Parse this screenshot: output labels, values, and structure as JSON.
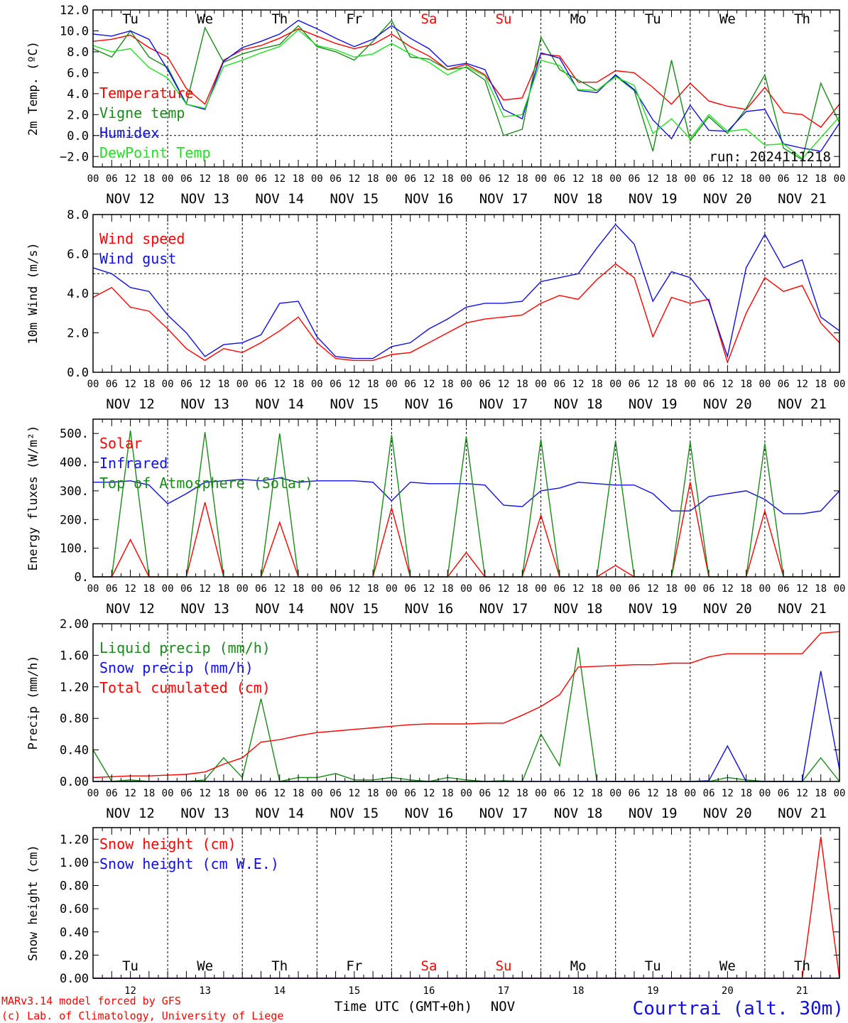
{
  "colors": {
    "red": "#ff0000",
    "green": "#1a8a1a",
    "blue": "#1010e0",
    "lightgreen": "#22e022",
    "axis": "#000000"
  },
  "days": [
    "Tu",
    "We",
    "Th",
    "Fr",
    "Sa",
    "Su",
    "Mo",
    "Tu",
    "We",
    "Th"
  ],
  "weekend_days": [
    4,
    5
  ],
  "dates": [
    "NOV 12",
    "NOV 13",
    "NOV 14",
    "NOV 15",
    "NOV 16",
    "NOV 17",
    "NOV 18",
    "NOV 19",
    "NOV 20",
    "NOV 21"
  ],
  "hour_ticks": [
    "00",
    "06",
    "12",
    "18"
  ],
  "hour_end": "00",
  "day_numbers": [
    "12",
    "13",
    "14",
    "15",
    "16",
    "17",
    "18",
    "19",
    "20",
    "21"
  ],
  "run_label": "run: 2024111218",
  "footer": {
    "model": "MARv3.14 model forced by GFS",
    "copyright": "(c) Lab. of Climatology, University of Liege",
    "xlabel": "Time UTC (GMT+0h)",
    "month": "NOV",
    "station": "Courtrai (alt. 30m)"
  },
  "chart_data": [
    {
      "type": "line",
      "ylabel": "2m Temp. (ºC)",
      "ylim": [
        -3,
        12
      ],
      "ticks": [
        "12.0",
        "10.0",
        "8.0",
        "6.0",
        "4.0",
        "2.0",
        "0.0",
        "−2.0"
      ],
      "tick_values": [
        12,
        10,
        8,
        6,
        4,
        2,
        0,
        -2
      ],
      "ref_line": 0,
      "x_hours": [
        0,
        6,
        12,
        18,
        24,
        30,
        36,
        42,
        48,
        54,
        60,
        66,
        72,
        78,
        84,
        90,
        96,
        102,
        108,
        114,
        120,
        126,
        132,
        138,
        144,
        150,
        156,
        162,
        168,
        174,
        180,
        186,
        192,
        198,
        204,
        210,
        216,
        222,
        228,
        234,
        240
      ],
      "series": [
        {
          "name": "Temperature",
          "color": "red",
          "values": [
            9,
            9.2,
            9.6,
            8.4,
            7.5,
            4.5,
            3,
            7.2,
            8.2,
            8.6,
            9.3,
            10.2,
            9.5,
            8.8,
            8.3,
            8.7,
            9.7,
            8.5,
            7.6,
            6.3,
            6.8,
            5.8,
            3.4,
            3.6,
            7.8,
            7.6,
            5.1,
            5.1,
            6.2,
            6,
            4.6,
            3,
            5,
            3.3,
            2.8,
            2.5,
            4.6,
            2.2,
            2,
            0.8,
            3
          ]
        },
        {
          "name": "Vigne temp",
          "color": "green",
          "values": [
            8.3,
            7.5,
            10,
            7.5,
            6.5,
            3,
            10.3,
            7,
            7.8,
            8.3,
            8.7,
            10.5,
            8.5,
            8,
            7.2,
            9,
            11,
            7.5,
            7.3,
            6.3,
            6.5,
            5.3,
            0,
            0.6,
            9.4,
            6.3,
            5.3,
            4.3,
            5.7,
            4.3,
            -1.5,
            7.2,
            -0.5,
            1.8,
            0.2,
            2.6,
            5.8,
            -1.2,
            -2.3,
            5,
            1.2
          ]
        },
        {
          "name": "Humidex",
          "color": "blue",
          "values": [
            9.7,
            9.5,
            10,
            9.2,
            6.3,
            3,
            2.5,
            7.1,
            8.4,
            9,
            9.7,
            11,
            10.2,
            9.3,
            8.5,
            9.2,
            10.5,
            9.3,
            8.3,
            6.6,
            6.9,
            6.3,
            2.5,
            1.6,
            7.9,
            7.4,
            4.3,
            4.1,
            5.8,
            4.4,
            1.5,
            -0.3,
            2.9,
            0.5,
            0.4,
            2.3,
            2.5,
            -0.8,
            -1.2,
            -1.5,
            1.2
          ]
        },
        {
          "name": "DewPoint Temp",
          "color": "lightgreen",
          "values": [
            8.6,
            8,
            8.3,
            6.5,
            5.5,
            3,
            2.6,
            6.6,
            7.2,
            7.9,
            8.5,
            10.1,
            8.6,
            8.2,
            7.5,
            7.8,
            8.8,
            7.8,
            7,
            5.8,
            6.6,
            5.7,
            1.8,
            2,
            7.2,
            6.7,
            4.4,
            4.3,
            5.6,
            4.8,
            0.2,
            1.6,
            -0.3,
            2,
            0.4,
            0.6,
            -0.9,
            -0.8,
            -2.2,
            -0.2,
            1.8
          ]
        }
      ]
    },
    {
      "type": "line",
      "ylabel": "10m Wind (m/s)",
      "ylim": [
        0,
        8
      ],
      "ticks": [
        "8.0",
        "6.0",
        "4.0",
        "2.0",
        "0.0"
      ],
      "tick_values": [
        8,
        6,
        4,
        2,
        0
      ],
      "ref_line": 5,
      "x_hours": [
        0,
        6,
        12,
        18,
        24,
        30,
        36,
        42,
        48,
        54,
        60,
        66,
        72,
        78,
        84,
        90,
        96,
        102,
        108,
        114,
        120,
        126,
        132,
        138,
        144,
        150,
        156,
        162,
        168,
        174,
        180,
        186,
        192,
        198,
        204,
        210,
        216,
        222,
        228,
        234,
        240
      ],
      "series": [
        {
          "name": "Wind speed",
          "color": "red",
          "values": [
            3.8,
            4.3,
            3.3,
            3.1,
            2.2,
            1.2,
            0.6,
            1.2,
            1,
            1.5,
            2.1,
            2.8,
            1.5,
            0.7,
            0.6,
            0.6,
            0.9,
            1,
            1.5,
            2,
            2.5,
            2.7,
            2.8,
            2.9,
            3.5,
            3.9,
            3.7,
            4.7,
            5.5,
            4.8,
            1.8,
            3.8,
            3.5,
            3.7,
            0.5,
            3,
            4.8,
            4.1,
            4.4,
            2.5,
            1.5
          ]
        },
        {
          "name": "Wind gust",
          "color": "blue",
          "values": [
            5.3,
            5,
            4.3,
            4.1,
            2.9,
            2,
            0.8,
            1.4,
            1.5,
            1.9,
            3.5,
            3.6,
            1.8,
            0.8,
            0.7,
            0.7,
            1.3,
            1.5,
            2.2,
            2.7,
            3.3,
            3.5,
            3.5,
            3.6,
            4.6,
            4.8,
            5,
            6.3,
            7.5,
            6.5,
            3.6,
            5.1,
            4.8,
            3.6,
            0.8,
            5.3,
            7,
            5.3,
            5.7,
            2.8,
            2.1
          ]
        }
      ]
    },
    {
      "type": "line",
      "ylabel": "Energy fluxes (W/m²)",
      "ylim": [
        0,
        550
      ],
      "ticks": [
        "500.",
        "400.",
        "300.",
        "200.",
        "100.",
        "0."
      ],
      "tick_values": [
        500,
        400,
        300,
        200,
        100,
        0
      ],
      "ref_line": null,
      "x_hours": [
        0,
        6,
        12,
        18,
        24,
        30,
        36,
        42,
        48,
        54,
        60,
        66,
        72,
        78,
        84,
        90,
        96,
        102,
        108,
        114,
        120,
        126,
        132,
        138,
        144,
        150,
        156,
        162,
        168,
        174,
        180,
        186,
        192,
        198,
        204,
        210,
        216,
        222,
        228,
        234,
        240
      ],
      "series": [
        {
          "name": "Solar",
          "color": "red",
          "values": [
            0,
            0,
            130,
            0,
            0,
            0,
            260,
            0,
            0,
            0,
            190,
            0,
            0,
            0,
            0,
            0,
            240,
            0,
            0,
            0,
            85,
            0,
            0,
            0,
            215,
            0,
            0,
            0,
            40,
            0,
            0,
            0,
            330,
            0,
            0,
            0,
            230,
            0,
            0,
            0,
            0
          ]
        },
        {
          "name": "Infrared",
          "color": "blue",
          "values": [
            330,
            330,
            335,
            320,
            255,
            290,
            330,
            335,
            340,
            335,
            345,
            330,
            335,
            335,
            335,
            330,
            265,
            330,
            325,
            325,
            325,
            320,
            250,
            245,
            300,
            310,
            330,
            325,
            320,
            320,
            290,
            230,
            230,
            280,
            290,
            300,
            270,
            220,
            220,
            230,
            300
          ]
        },
        {
          "name": "Top of Atmosphere (Solar)",
          "color": "green",
          "values": [
            0,
            0,
            510,
            0,
            0,
            0,
            505,
            0,
            0,
            0,
            500,
            0,
            0,
            0,
            0,
            0,
            495,
            0,
            0,
            0,
            490,
            0,
            0,
            0,
            480,
            0,
            0,
            0,
            475,
            0,
            0,
            0,
            470,
            0,
            0,
            0,
            465,
            0,
            0,
            0,
            0
          ]
        }
      ]
    },
    {
      "type": "line",
      "ylabel": "Precip (mm/h)",
      "ylim": [
        0,
        2
      ],
      "ticks": [
        "2.00",
        "1.60",
        "1.20",
        "0.80",
        "0.40",
        "0.00"
      ],
      "tick_values": [
        2,
        1.6,
        1.2,
        0.8,
        0.4,
        0
      ],
      "ref_line": null,
      "x_hours": [
        0,
        6,
        12,
        18,
        24,
        30,
        36,
        42,
        48,
        54,
        60,
        66,
        72,
        78,
        84,
        90,
        96,
        102,
        108,
        114,
        120,
        126,
        132,
        138,
        144,
        150,
        156,
        162,
        168,
        174,
        180,
        186,
        192,
        198,
        204,
        210,
        216,
        222,
        228,
        234,
        240
      ],
      "series": [
        {
          "name": "Liquid precip (mm/h)",
          "color": "green",
          "values": [
            0.4,
            0,
            0.02,
            0,
            0,
            0,
            0.02,
            0.3,
            0.05,
            1.05,
            0,
            0.05,
            0.05,
            0.1,
            0.02,
            0.02,
            0.05,
            0.02,
            0,
            0.05,
            0.02,
            0,
            0.01,
            0,
            0.6,
            0.2,
            1.7,
            0,
            0,
            0,
            0,
            0,
            0,
            0,
            0.05,
            0.02,
            0,
            0,
            0,
            0.3,
            0
          ]
        },
        {
          "name": "Snow precip (mm/h)",
          "color": "blue",
          "values": [
            0,
            0,
            0,
            0,
            0,
            0,
            0,
            0,
            0,
            0,
            0,
            0,
            0,
            0,
            0,
            0,
            0,
            0,
            0,
            0,
            0,
            0,
            0,
            0,
            0,
            0,
            0,
            0,
            0,
            0,
            0,
            0,
            0,
            0.01,
            0.45,
            0,
            0,
            0,
            0,
            1.4,
            0.15
          ]
        },
        {
          "name": "Total cumulated (cm)",
          "color": "red",
          "values": [
            0.05,
            0.06,
            0.07,
            0.07,
            0.08,
            0.09,
            0.12,
            0.22,
            0.3,
            0.5,
            0.53,
            0.58,
            0.62,
            0.64,
            0.66,
            0.68,
            0.7,
            0.72,
            0.73,
            0.73,
            0.73,
            0.74,
            0.74,
            0.84,
            0.95,
            1.1,
            1.45,
            1.46,
            1.47,
            1.48,
            1.48,
            1.5,
            1.5,
            1.58,
            1.62,
            1.62,
            1.62,
            1.62,
            1.62,
            1.88,
            1.9
          ]
        }
      ]
    },
    {
      "type": "line",
      "ylabel": "Snow height (cm)",
      "ylim": [
        0,
        1.3
      ],
      "ticks": [
        "1.20",
        "1.00",
        "0.80",
        "0.60",
        "0.40",
        "0.20",
        "0.00"
      ],
      "tick_values": [
        1.2,
        1,
        0.8,
        0.6,
        0.4,
        0.2,
        0
      ],
      "ref_line": null,
      "x_hours": [
        0,
        216,
        228,
        231,
        234,
        237,
        240
      ],
      "series": [
        {
          "name": "Snow height (cm)",
          "color": "red",
          "values": [
            0,
            0,
            0,
            0.6,
            1.22,
            0.6,
            0
          ]
        },
        {
          "name": "Snow height (cm W.E.)",
          "color": "blue",
          "values": [
            0,
            0,
            0,
            0,
            0,
            0,
            0
          ]
        }
      ]
    }
  ]
}
